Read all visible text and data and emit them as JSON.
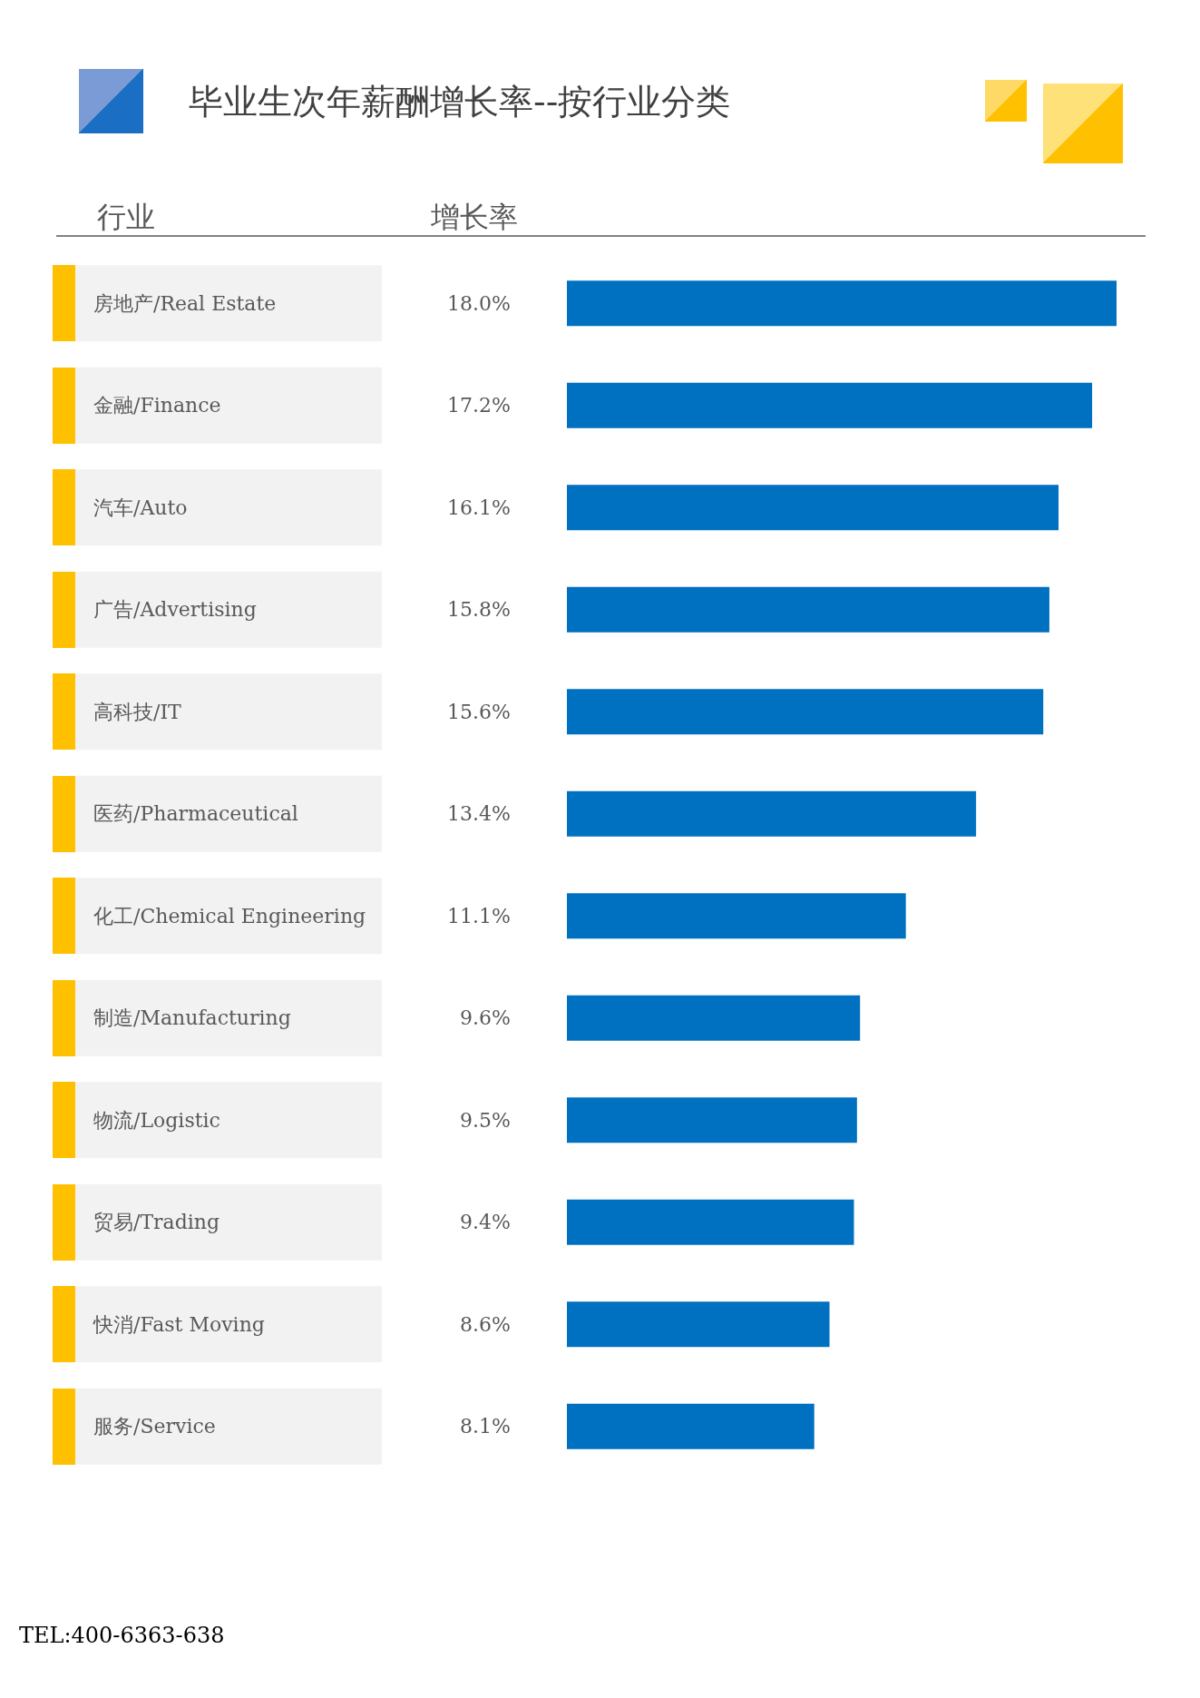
{
  "chart_data": {
    "type": "bar",
    "orientation": "horizontal",
    "title": "毕业生次年薪酬增长率--按行业分类",
    "ylabel": "行业",
    "annotations": [
      "增长率",
      "TEL:400-6363-638"
    ],
    "categories": [
      "房地产/Real Estate",
      "金融/Finance",
      "汽车/Auto",
      "广告/Advertising",
      "高科技/IT",
      "医药/Pharmaceutical",
      "化工/Chemical Engineering",
      "制造/Manufacturing",
      "物流/Logistic",
      "贸易/Trading",
      "快消/Fast Moving",
      "服务/Service"
    ],
    "values": [
      18.0,
      17.2,
      16.1,
      15.8,
      15.6,
      13.4,
      11.1,
      9.6,
      9.5,
      9.4,
      8.6,
      8.1
    ],
    "value_labels": [
      "18.0%",
      "17.2%",
      "16.1%",
      "15.8%",
      "15.6%",
      "13.4%",
      "11.1%",
      "9.6%",
      "9.5%",
      "9.4%",
      "8.6%",
      "8.1%"
    ],
    "color": "#0070c0"
  }
}
